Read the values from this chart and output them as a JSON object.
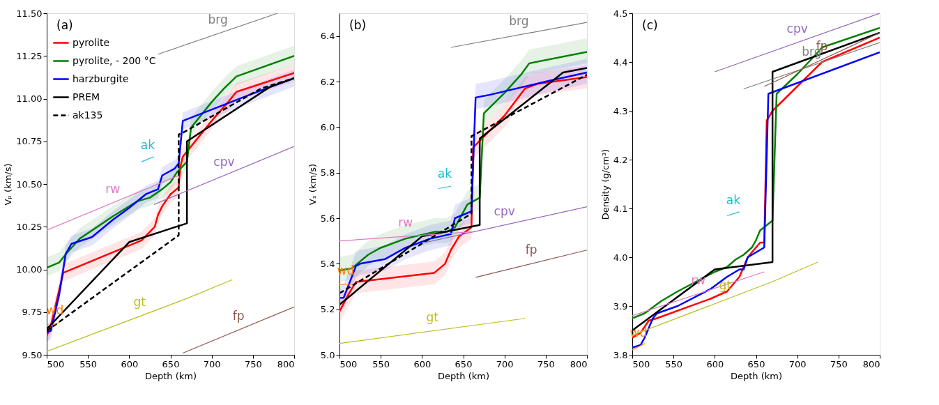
{
  "chart_data": [
    {
      "type": "line",
      "title": "(a)",
      "xlabel": "Depth (km)",
      "ylabel": "Vₚ (km/s)",
      "xlim": [
        500,
        800
      ],
      "xticks": [
        500,
        550,
        600,
        650,
        700,
        750,
        800
      ],
      "ylim": [
        9.5,
        11.5
      ],
      "yticks": [
        {
          "value": 9.5,
          "label": "9.50"
        },
        {
          "value": 9.75,
          "label": "9.75"
        },
        {
          "value": 10,
          "label": "10.00"
        },
        {
          "value": 10.25,
          "label": "10.25"
        },
        {
          "value": 10.5,
          "label": "10.50"
        },
        {
          "value": 10.75,
          "label": "10.75"
        },
        {
          "value": 11,
          "label": "11.00"
        },
        {
          "value": 11.25,
          "label": "11.25"
        },
        {
          "value": 11.5,
          "label": "11.50"
        }
      ],
      "grid": false,
      "legend": "top left",
      "series": [
        {
          "name": "pyrolite",
          "color": "#ff0000",
          "x": [
            500,
            505,
            520,
            615,
            625,
            631,
            635,
            640,
            650,
            660,
            662,
            665,
            700,
            720,
            730,
            800
          ],
          "values": [
            9.61,
            9.67,
            9.98,
            10.17,
            10.22,
            10.25,
            10.32,
            10.37,
            10.44,
            10.48,
            10.6,
            10.66,
            10.87,
            10.98,
            11.04,
            11.15
          ],
          "lower": [
            9.56,
            9.62,
            9.93,
            10.12,
            10.17,
            10.2,
            10.27,
            10.32,
            10.39,
            10.43,
            10.55,
            10.61,
            10.82,
            10.93,
            10.99,
            11.1
          ],
          "upper": [
            9.66,
            9.72,
            10.03,
            10.22,
            10.27,
            10.3,
            10.37,
            10.42,
            10.49,
            10.53,
            10.65,
            10.71,
            10.92,
            11.03,
            11.09,
            11.2
          ]
        },
        {
          "name": "pyrolite, - 200 °C",
          "color": "#008000",
          "x": [
            500,
            515,
            525,
            540,
            580,
            610,
            625,
            640,
            650,
            658,
            670,
            675,
            700,
            715,
            730,
            800
          ],
          "values": [
            10.01,
            10.04,
            10.1,
            10.18,
            10.31,
            10.4,
            10.42,
            10.47,
            10.51,
            10.57,
            10.63,
            10.83,
            10.98,
            11.06,
            11.13,
            11.25
          ],
          "lower": [
            9.96,
            9.99,
            10.05,
            10.13,
            10.26,
            10.35,
            10.37,
            10.42,
            10.46,
            10.52,
            10.58,
            10.78,
            10.93,
            11.01,
            11.08,
            11.2
          ],
          "upper": [
            10.07,
            10.1,
            10.16,
            10.24,
            10.37,
            10.46,
            10.48,
            10.53,
            10.57,
            10.63,
            10.69,
            10.89,
            11.04,
            11.12,
            11.19,
            11.31
          ]
        },
        {
          "name": "harzburgite",
          "color": "#0000ff",
          "x": [
            500,
            505,
            515,
            523,
            530,
            555,
            580,
            600,
            620,
            635,
            640,
            655,
            660,
            665,
            750,
            800
          ],
          "values": [
            9.63,
            9.64,
            9.85,
            10.09,
            10.15,
            10.19,
            10.29,
            10.36,
            10.44,
            10.47,
            10.55,
            10.59,
            10.62,
            10.87,
            11.03,
            11.12
          ],
          "lower": [
            9.58,
            9.59,
            9.8,
            10.04,
            10.1,
            10.14,
            10.24,
            10.31,
            10.39,
            10.42,
            10.5,
            10.54,
            10.57,
            10.82,
            10.98,
            11.07
          ],
          "upper": [
            9.68,
            9.69,
            9.9,
            10.14,
            10.2,
            10.24,
            10.34,
            10.41,
            10.49,
            10.52,
            10.6,
            10.64,
            10.67,
            10.92,
            11.08,
            11.17
          ]
        },
        {
          "name": "PREM",
          "color": "#000000",
          "x": [
            500,
            600,
            670,
            670,
            771,
            800
          ],
          "values": [
            9.65,
            10.16,
            10.27,
            10.75,
            11.07,
            11.12
          ]
        },
        {
          "name": "ak135",
          "color": "#000000",
          "line_style": "dashed",
          "x": [
            500,
            660,
            660,
            665,
            760,
            800
          ],
          "values": [
            9.64,
            10.2,
            10.79,
            10.8,
            11.06,
            11.12
          ]
        },
        {
          "name": "brg",
          "color": "#7f7f7f",
          "x": [
            635,
            780
          ],
          "values": [
            11.26,
            11.5
          ]
        },
        {
          "name": "cpv",
          "color": "#9467bd",
          "x": [
            630,
            800
          ],
          "values": [
            10.38,
            10.72
          ]
        },
        {
          "name": "rw",
          "color": "#e377c2",
          "x": [
            500,
            660
          ],
          "values": [
            10.23,
            10.55
          ]
        },
        {
          "name": "ak",
          "color": "#17becf",
          "x": [
            615,
            630
          ],
          "values": [
            10.63,
            10.66
          ]
        },
        {
          "name": "wd",
          "color": "#ff7f0e",
          "x": [
            505,
            515
          ],
          "values": [
            9.67,
            9.69
          ]
        },
        {
          "name": "gt",
          "color": "#bcbd22",
          "x": [
            500,
            670,
            725
          ],
          "values": [
            9.52,
            9.83,
            9.94
          ]
        },
        {
          "name": "fp",
          "color": "#8c564b",
          "x": [
            665,
            800
          ],
          "values": [
            9.51,
            9.78
          ]
        }
      ]
    },
    {
      "type": "line",
      "title": "(b)",
      "xlabel": "Depth (km)",
      "ylabel": "Vₛ (km/s)",
      "xlim": [
        500,
        800
      ],
      "xticks": [
        500,
        550,
        600,
        650,
        700,
        750,
        800
      ],
      "ylim": [
        5.0,
        6.5
      ],
      "yticks": [
        {
          "value": 5,
          "label": "5.0"
        },
        {
          "value": 5.2,
          "label": "5.2"
        },
        {
          "value": 5.4,
          "label": "5.4"
        },
        {
          "value": 5.6,
          "label": "5.6"
        },
        {
          "value": 5.8,
          "label": "5.8"
        },
        {
          "value": 6,
          "label": "6.0"
        },
        {
          "value": 6.2,
          "label": "6.2"
        },
        {
          "value": 6.4,
          "label": "6.4"
        }
      ],
      "grid": false,
      "series": [
        {
          "color": "#ff0000",
          "x": [
            500,
            510,
            520,
            615,
            628,
            635,
            645,
            660,
            662,
            700,
            725,
            740,
            800
          ],
          "values": [
            5.19,
            5.26,
            5.32,
            5.36,
            5.4,
            5.46,
            5.52,
            5.56,
            5.91,
            6.05,
            6.17,
            6.19,
            6.22
          ],
          "lower": [
            5.14,
            5.21,
            5.27,
            5.31,
            5.35,
            5.41,
            5.47,
            5.51,
            5.86,
            6.0,
            6.12,
            6.14,
            6.17
          ],
          "upper": [
            5.24,
            5.31,
            5.37,
            5.41,
            5.45,
            5.51,
            5.57,
            5.61,
            5.96,
            6.1,
            6.22,
            6.24,
            6.27
          ]
        },
        {
          "color": "#008000",
          "x": [
            500,
            515,
            535,
            550,
            580,
            615,
            630,
            640,
            655,
            670,
            675,
            700,
            720,
            730,
            800
          ],
          "values": [
            5.37,
            5.38,
            5.44,
            5.47,
            5.51,
            5.54,
            5.54,
            5.56,
            5.66,
            5.69,
            6.06,
            6.15,
            6.23,
            6.28,
            6.33
          ],
          "lower": [
            5.32,
            5.33,
            5.39,
            5.42,
            5.46,
            5.49,
            5.49,
            5.51,
            5.61,
            5.64,
            6.01,
            6.1,
            6.18,
            6.23,
            6.28
          ],
          "upper": [
            5.43,
            5.44,
            5.5,
            5.53,
            5.57,
            5.6,
            5.6,
            5.62,
            5.72,
            5.75,
            6.12,
            6.21,
            6.29,
            6.34,
            6.39
          ]
        },
        {
          "color": "#0000ff",
          "x": [
            500,
            505,
            520,
            525,
            555,
            580,
            610,
            635,
            640,
            660,
            665,
            680,
            750,
            800
          ],
          "values": [
            5.25,
            5.25,
            5.39,
            5.4,
            5.42,
            5.47,
            5.51,
            5.53,
            5.6,
            5.63,
            6.13,
            6.14,
            6.2,
            6.24
          ],
          "lower": [
            5.2,
            5.2,
            5.34,
            5.35,
            5.37,
            5.42,
            5.46,
            5.48,
            5.55,
            5.58,
            6.08,
            6.09,
            6.15,
            6.19
          ],
          "upper": [
            5.31,
            5.31,
            5.45,
            5.46,
            5.48,
            5.53,
            5.57,
            5.59,
            5.66,
            5.69,
            6.19,
            6.2,
            6.26,
            6.3
          ]
        },
        {
          "color": "#000000",
          "x": [
            500,
            600,
            670,
            670,
            771,
            800
          ],
          "values": [
            5.22,
            5.52,
            5.57,
            5.95,
            6.24,
            6.26
          ]
        },
        {
          "color": "#000000",
          "line_style": "dashed",
          "x": [
            500,
            660,
            660,
            800
          ],
          "values": [
            5.27,
            5.62,
            5.96,
            6.23
          ]
        },
        {
          "name": "brg",
          "color": "#7f7f7f",
          "x": [
            635,
            800
          ],
          "values": [
            6.35,
            6.46
          ]
        },
        {
          "name": "cpv",
          "color": "#9467bd",
          "x": [
            600,
            800
          ],
          "values": [
            5.49,
            5.65
          ]
        },
        {
          "name": "rw",
          "color": "#e377c2",
          "x": [
            500,
            660
          ],
          "values": [
            5.5,
            5.54
          ]
        },
        {
          "name": "ak",
          "color": "#17becf",
          "x": [
            620,
            635
          ],
          "values": [
            5.73,
            5.74
          ]
        },
        {
          "name": "wd",
          "color": "#ff7f0e",
          "x": [
            500,
            515
          ],
          "values": [
            5.31,
            5.31
          ]
        },
        {
          "name": "gt",
          "color": "#bcbd22",
          "x": [
            500,
            725
          ],
          "values": [
            5.05,
            5.16
          ]
        },
        {
          "name": "fp",
          "color": "#8c564b",
          "x": [
            665,
            800
          ],
          "values": [
            5.34,
            5.46
          ]
        }
      ]
    },
    {
      "type": "line",
      "title": "(c)",
      "xlabel": "Depth (km)",
      "ylabel": "Density (g/cm³)",
      "xlim": [
        500,
        800
      ],
      "xticks": [
        500,
        550,
        600,
        650,
        700,
        750,
        800
      ],
      "ylim": [
        3.8,
        4.5
      ],
      "yticks": [
        {
          "value": 3.8,
          "label": "3.8"
        },
        {
          "value": 3.9,
          "label": "3.9"
        },
        {
          "value": 4,
          "label": "4.0"
        },
        {
          "value": 4.1,
          "label": "4.1"
        },
        {
          "value": 4.2,
          "label": "4.2"
        },
        {
          "value": 4.3,
          "label": "4.3"
        },
        {
          "value": 4.4,
          "label": "4.4"
        },
        {
          "value": 4.5,
          "label": "4.5"
        }
      ],
      "grid": false,
      "series": [
        {
          "color": "#ff0000",
          "x": [
            500,
            510,
            520,
            530,
            595,
            615,
            630,
            640,
            655,
            660,
            663,
            670,
            700,
            730,
            800
          ],
          "values": [
            3.835,
            3.845,
            3.87,
            3.875,
            3.915,
            3.93,
            3.96,
            4.0,
            4.03,
            4.03,
            4.28,
            4.3,
            4.35,
            4.4,
            4.45
          ]
        },
        {
          "color": "#008000",
          "x": [
            500,
            515,
            535,
            555,
            600,
            615,
            625,
            635,
            645,
            650,
            655,
            670,
            675,
            700,
            725,
            730,
            800
          ],
          "values": [
            3.875,
            3.885,
            3.91,
            3.93,
            3.97,
            3.98,
            3.995,
            4.005,
            4.02,
            4.035,
            4.055,
            4.075,
            4.335,
            4.375,
            4.42,
            4.43,
            4.47
          ]
        },
        {
          "color": "#0000ff",
          "x": [
            500,
            510,
            515,
            525,
            530,
            555,
            595,
            615,
            630,
            635,
            640,
            660,
            665,
            800
          ],
          "values": [
            3.815,
            3.82,
            3.835,
            3.875,
            3.885,
            3.9,
            3.935,
            3.96,
            3.975,
            3.975,
            4.0,
            4.02,
            4.335,
            4.42
          ]
        },
        {
          "color": "#000000",
          "x": [
            500,
            600,
            670,
            670,
            800
          ],
          "values": [
            3.85,
            3.975,
            3.99,
            4.38,
            4.46
          ]
        },
        {
          "name": "cpv",
          "color": "#9467bd",
          "x": [
            600,
            800
          ],
          "values": [
            4.38,
            4.5
          ]
        },
        {
          "name": "brg",
          "color": "#7f7f7f",
          "x": [
            635,
            800
          ],
          "values": [
            4.345,
            4.44
          ]
        },
        {
          "name": "fp",
          "color": "#8c564b",
          "x": [
            660,
            800
          ],
          "values": [
            4.35,
            4.46
          ]
        },
        {
          "name": "rw",
          "color": "#e377c2",
          "x": [
            500,
            660
          ],
          "values": [
            3.88,
            3.97
          ]
        },
        {
          "name": "ak",
          "color": "#17becf",
          "x": [
            615,
            630
          ],
          "values": [
            4.085,
            4.093
          ]
        },
        {
          "name": "wd",
          "color": "#ff7f0e",
          "x": [
            500,
            515
          ],
          "values": [
            3.81,
            3.823
          ]
        },
        {
          "name": "gt",
          "color": "#bcbd22",
          "x": [
            500,
            670,
            725
          ],
          "values": [
            3.84,
            3.95,
            3.99
          ]
        }
      ]
    }
  ]
}
